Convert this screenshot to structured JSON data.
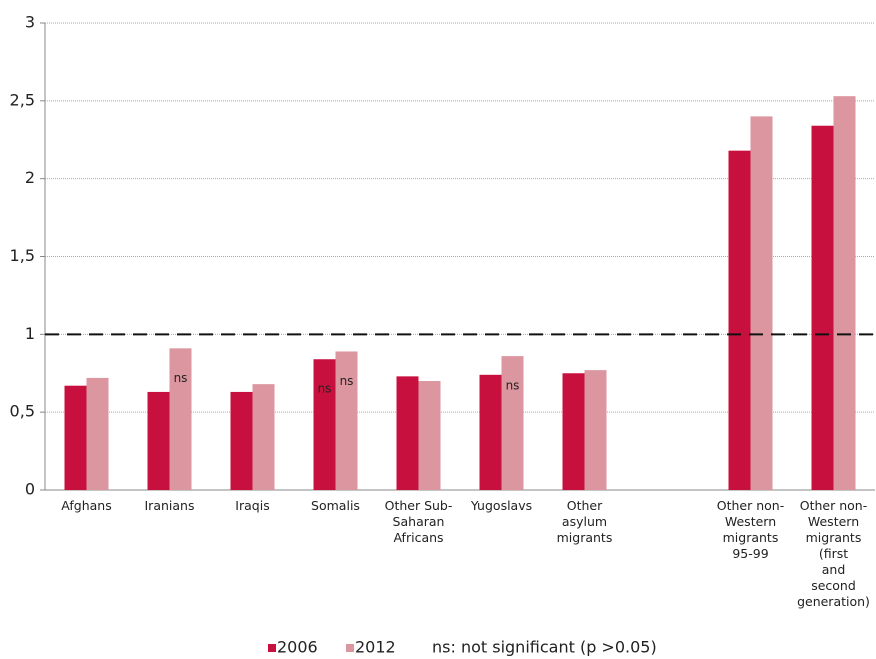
{
  "chart_data": {
    "type": "bar",
    "categories": [
      "Afghans",
      "Iranians",
      "Iraqis",
      "Somalis",
      "Other Sub-\nSaharan\nAfricans",
      "Yugoslavs",
      "Other\nasylum\nmigrants",
      null,
      "Other non-\nWestern\nmigrants\n95-99",
      "Other non-\nWestern\nmigrants (first\nand\nsecond\ngeneration)"
    ],
    "series": [
      {
        "name": "2006",
        "color": "#c8103e",
        "values": [
          0.67,
          0.63,
          0.63,
          0.84,
          0.73,
          0.74,
          0.75,
          null,
          2.18,
          2.34
        ],
        "annotations": [
          null,
          null,
          null,
          "ns",
          null,
          null,
          null,
          null,
          null,
          null
        ]
      },
      {
        "name": "2012",
        "color": "#dc96a0",
        "values": [
          0.72,
          0.91,
          0.68,
          0.89,
          0.7,
          0.86,
          0.77,
          null,
          2.4,
          2.53
        ],
        "annotations": [
          null,
          "ns",
          null,
          "ns",
          null,
          "ns",
          null,
          null,
          null,
          null
        ]
      }
    ],
    "note": "ns: not significant (p >0.05)",
    "ylim": [
      0,
      3
    ],
    "yticks": [
      {
        "value": 0,
        "label": "0"
      },
      {
        "value": 0.5,
        "label": "0,5"
      },
      {
        "value": 1,
        "label": "1"
      },
      {
        "value": 1.5,
        "label": "1,5"
      },
      {
        "value": 2,
        "label": "2"
      },
      {
        "value": 2.5,
        "label": "2,5"
      },
      {
        "value": 3,
        "label": "3"
      }
    ],
    "reference_line": 1,
    "grid": true
  }
}
